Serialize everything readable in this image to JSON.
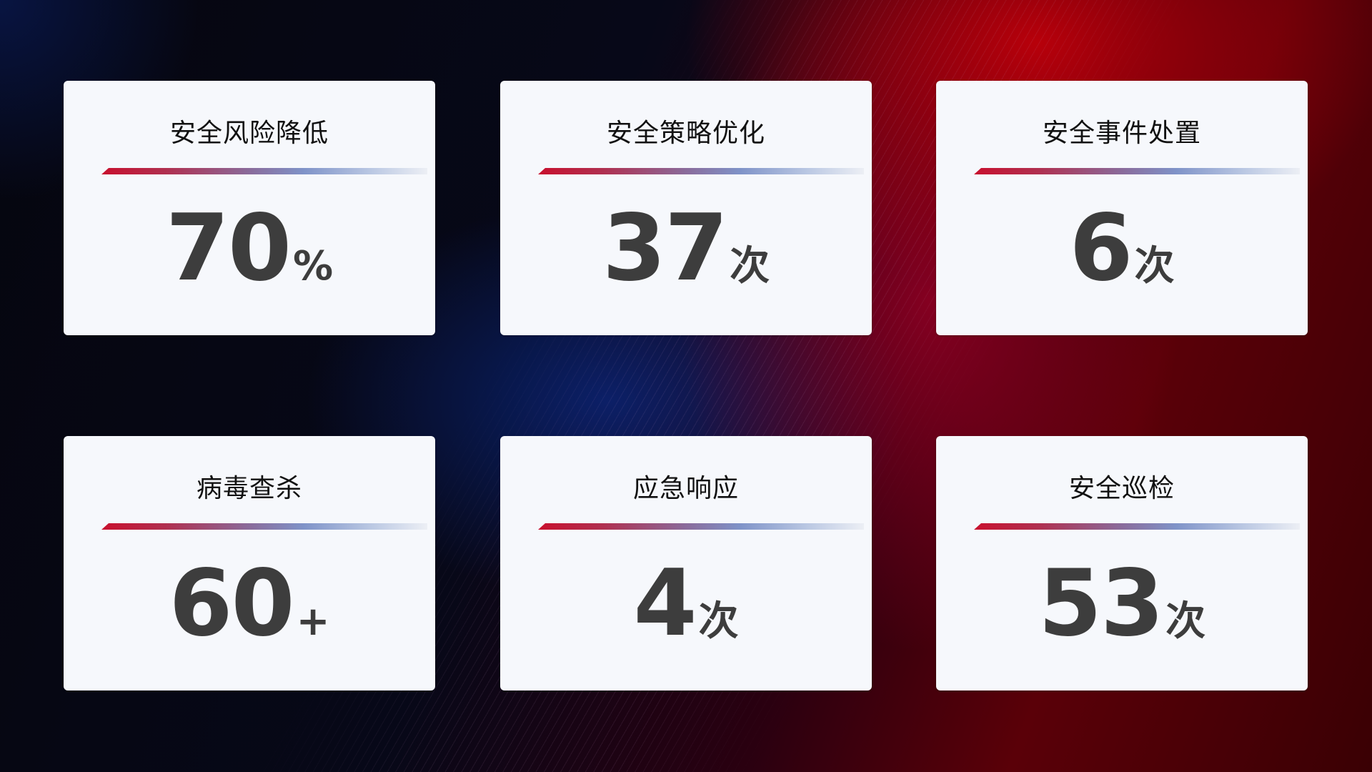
{
  "colors": {
    "accent_red": "#c8102e",
    "accent_blue": "#7f93c8",
    "card_bg": "#f6f8fc",
    "value_text": "#3d3d3d"
  },
  "cards": [
    {
      "title": "安全风险降低",
      "value": "70",
      "unit": "%"
    },
    {
      "title": "安全策略优化",
      "value": "37",
      "unit": "次"
    },
    {
      "title": "安全事件处置",
      "value": "6",
      "unit": "次"
    },
    {
      "title": "病毒查杀",
      "value": "60",
      "unit": "+"
    },
    {
      "title": "应急响应",
      "value": "4",
      "unit": "次"
    },
    {
      "title": "安全巡检",
      "value": "53",
      "unit": "次"
    }
  ]
}
